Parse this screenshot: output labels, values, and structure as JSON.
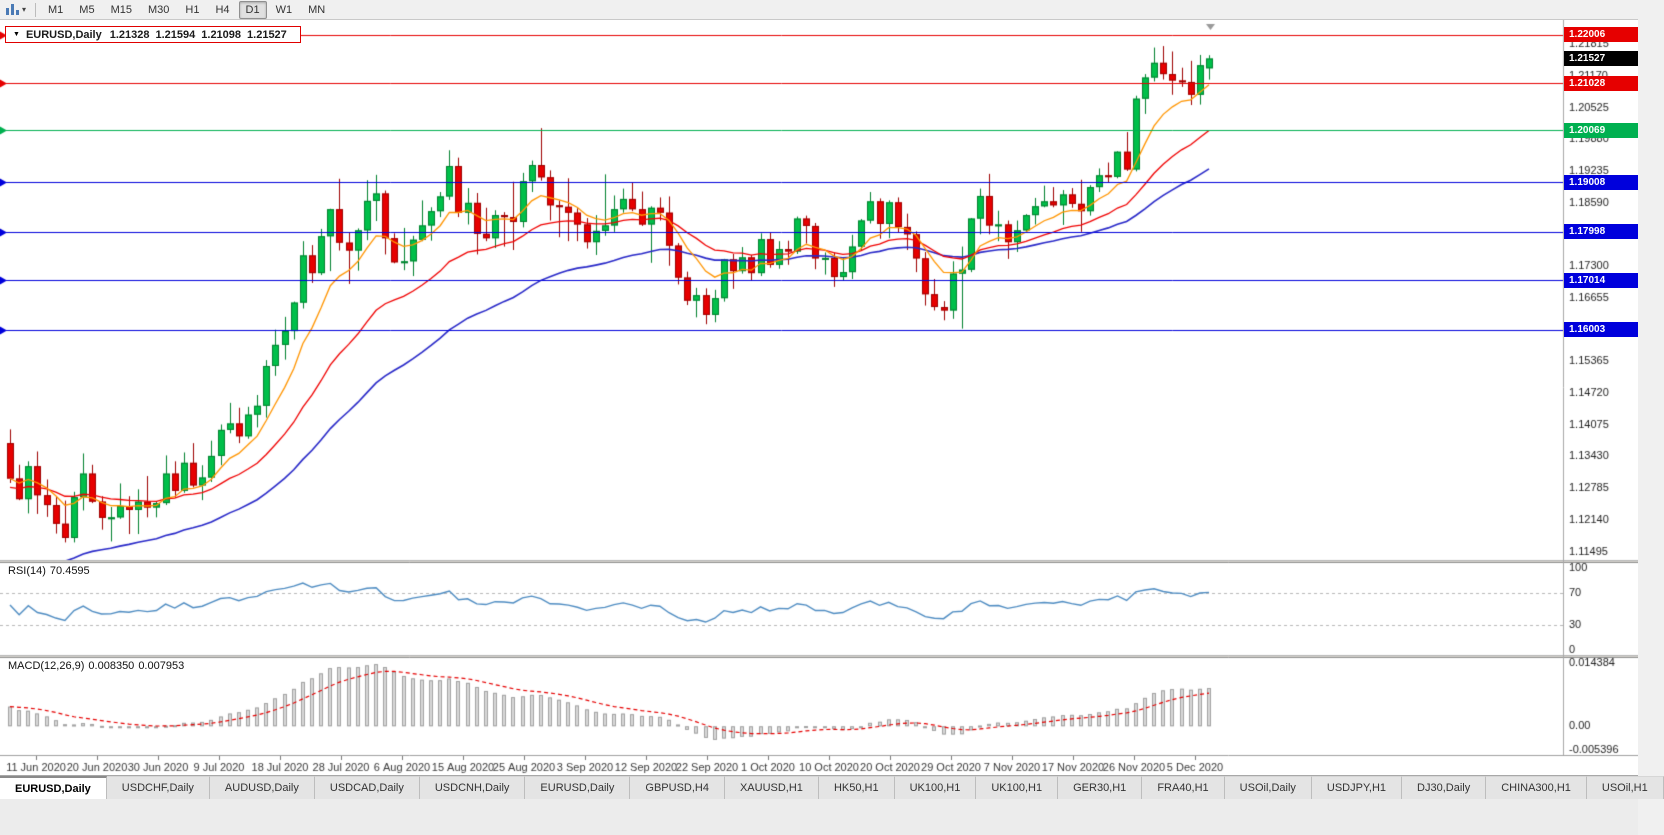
{
  "toolbar": {
    "dropdown_caret": "▾",
    "timeframes": [
      "M1",
      "M5",
      "M15",
      "M30",
      "H1",
      "H4",
      "D1",
      "W1",
      "MN"
    ],
    "active_timeframe": "D1"
  },
  "chart": {
    "title": {
      "collapse_icon": "▼",
      "symbol": "EURUSD,Daily",
      "open": "1.21328",
      "high": "1.21594",
      "low": "1.21098",
      "close": "1.21527"
    },
    "price_axis_ticks": [
      "1.21815",
      "1.21170",
      "1.20525",
      "1.19880",
      "1.19235",
      "1.18590",
      "1.17300",
      "1.16655",
      "1.15365",
      "1.14720",
      "1.14075",
      "1.13430",
      "1.12785",
      "1.12140",
      "1.11495"
    ],
    "badges": [
      {
        "value": "1.22006",
        "color": "#e60000",
        "type": "resistance-line"
      },
      {
        "value": "1.21527",
        "color": "#000000",
        "type": "current-price"
      },
      {
        "value": "1.21028",
        "color": "#e60000",
        "type": "resistance-line"
      },
      {
        "value": "1.20069",
        "color": "#00b050",
        "type": "support-line"
      },
      {
        "value": "1.19008",
        "color": "#0000dc",
        "type": "support-line"
      },
      {
        "value": "1.17998",
        "color": "#0000dc",
        "type": "support-line"
      },
      {
        "value": "1.17014",
        "color": "#0000dc",
        "type": "support-line"
      },
      {
        "value": "1.16003",
        "color": "#0000dc",
        "type": "support-line"
      }
    ]
  },
  "rsi_panel": {
    "label": "RSI(14)",
    "value": "70.4595",
    "axis_ticks": [
      "100",
      "70",
      "30",
      "0"
    ],
    "levels": [
      70,
      30
    ],
    "line_color": "#4e8cc2"
  },
  "macd_panel": {
    "label": "MACD(12,26,9)",
    "main_value": "0.008350",
    "signal_value": "0.007953",
    "axis_ticks": [
      "0.014384",
      "0.00",
      "-0.005396"
    ],
    "range": [
      -0.005396,
      0.014384
    ],
    "histogram_color": "#d8d8d8",
    "signal_color": "#e60000"
  },
  "date_axis": [
    "11 Jun 2020",
    "20 Jun 2020",
    "30 Jun 2020",
    "9 Jul 2020",
    "18 Jul 2020",
    "28 Jul 2020",
    "6 Aug 2020",
    "15 Aug 2020",
    "25 Aug 2020",
    "3 Sep 2020",
    "12 Sep 2020",
    "22 Sep 2020",
    "1 Oct 2020",
    "10 Oct 2020",
    "20 Oct 2020",
    "29 Oct 2020",
    "7 Nov 2020",
    "17 Nov 2020",
    "26 Nov 2020",
    "5 Dec 2020"
  ],
  "tabs": {
    "active_index": 0,
    "items": [
      "EURUSD,Daily",
      "USDCHF,Daily",
      "AUDUSD,Daily",
      "USDCAD,Daily",
      "USDCNH,Daily",
      "EURUSD,Daily",
      "GBPUSD,H4",
      "XAUUSD,H1",
      "HK50,H1",
      "UK100,H1",
      "UK100,H1",
      "GER30,H1",
      "FRA40,H1",
      "USOil,Daily",
      "USDJPY,H1",
      "DJ30,Daily",
      "CHINA300,H1",
      "USOil,H1"
    ]
  },
  "chart_data": {
    "type": "candlestick",
    "symbol": "EURUSD",
    "timeframe": "Daily",
    "price_range_top": 1.22311,
    "price_range_bottom": 1.11322,
    "up_color": "#00bf4a",
    "down_color": "#e60000",
    "hlines": [
      {
        "price": 1.22006,
        "color": "#e60000"
      },
      {
        "price": 1.21028,
        "color": "#e60000"
      },
      {
        "price": 1.20069,
        "color": "#00b050"
      },
      {
        "price": 1.19008,
        "color": "#0000dc"
      },
      {
        "price": 1.17998,
        "color": "#0000dc"
      },
      {
        "price": 1.17014,
        "color": "#0000dc"
      },
      {
        "price": 1.16003,
        "color": "#0000dc"
      }
    ],
    "moving_averages": [
      {
        "period": 8,
        "color": "#ff9500"
      },
      {
        "period": 21,
        "color": "#f00000"
      },
      {
        "period": 40,
        "color": "#2828c8"
      }
    ],
    "candles": [
      [
        1.137,
        1.1398,
        1.1289,
        1.1298
      ],
      [
        1.1298,
        1.1326,
        1.1254,
        1.1256
      ],
      [
        1.1256,
        1.1333,
        1.1227,
        1.1323
      ],
      [
        1.1323,
        1.1353,
        1.1226,
        1.1264
      ],
      [
        1.1264,
        1.1296,
        1.122,
        1.1244
      ],
      [
        1.1244,
        1.1262,
        1.1186,
        1.1206
      ],
      [
        1.1206,
        1.1253,
        1.1168,
        1.1177
      ],
      [
        1.1177,
        1.1271,
        1.1168,
        1.126
      ],
      [
        1.126,
        1.1349,
        1.1233,
        1.1308
      ],
      [
        1.1308,
        1.1326,
        1.1248,
        1.1251
      ],
      [
        1.1251,
        1.1262,
        1.1194,
        1.1218
      ],
      [
        1.1218,
        1.124,
        1.117,
        1.1219
      ],
      [
        1.1219,
        1.1288,
        1.1216,
        1.1242
      ],
      [
        1.1242,
        1.1262,
        1.1185,
        1.1234
      ],
      [
        1.1234,
        1.1276,
        1.1185,
        1.1251
      ],
      [
        1.1251,
        1.1303,
        1.1219,
        1.1239
      ],
      [
        1.1239,
        1.1251,
        1.1219,
        1.1248
      ],
      [
        1.1248,
        1.1345,
        1.1244,
        1.1308
      ],
      [
        1.1308,
        1.1333,
        1.1259,
        1.1273
      ],
      [
        1.1273,
        1.1351,
        1.1269,
        1.133
      ],
      [
        1.133,
        1.137,
        1.128,
        1.1284
      ],
      [
        1.1284,
        1.1325,
        1.1254,
        1.13
      ],
      [
        1.13,
        1.1375,
        1.1291,
        1.1344
      ],
      [
        1.1344,
        1.1408,
        1.1325,
        1.1397
      ],
      [
        1.1397,
        1.1452,
        1.139,
        1.141
      ],
      [
        1.141,
        1.1442,
        1.137,
        1.1384
      ],
      [
        1.1384,
        1.1444,
        1.1379,
        1.1428
      ],
      [
        1.1428,
        1.1468,
        1.1402,
        1.1446
      ],
      [
        1.1446,
        1.1539,
        1.1422,
        1.1527
      ],
      [
        1.1527,
        1.1601,
        1.1507,
        1.157
      ],
      [
        1.157,
        1.1627,
        1.154,
        1.1598
      ],
      [
        1.1598,
        1.1658,
        1.1581,
        1.1656
      ],
      [
        1.1656,
        1.1781,
        1.1644,
        1.1752
      ],
      [
        1.1752,
        1.1773,
        1.1696,
        1.1716
      ],
      [
        1.1716,
        1.1806,
        1.1712,
        1.1791
      ],
      [
        1.1791,
        1.1847,
        1.172,
        1.1846
      ],
      [
        1.1846,
        1.1908,
        1.1762,
        1.1778
      ],
      [
        1.1778,
        1.1798,
        1.1694,
        1.1762
      ],
      [
        1.1762,
        1.1807,
        1.1721,
        1.1803
      ],
      [
        1.1803,
        1.1905,
        1.1783,
        1.1863
      ],
      [
        1.1863,
        1.1916,
        1.1822,
        1.1878
      ],
      [
        1.1878,
        1.1884,
        1.1754,
        1.1787
      ],
      [
        1.1787,
        1.1797,
        1.1736,
        1.1738
      ],
      [
        1.1738,
        1.1808,
        1.1722,
        1.174
      ],
      [
        1.174,
        1.1792,
        1.171,
        1.1784
      ],
      [
        1.1784,
        1.1864,
        1.1781,
        1.1813
      ],
      [
        1.1813,
        1.185,
        1.1782,
        1.1842
      ],
      [
        1.1842,
        1.1881,
        1.183,
        1.1872
      ],
      [
        1.1872,
        1.1966,
        1.1865,
        1.1934
      ],
      [
        1.1934,
        1.1951,
        1.183,
        1.1839
      ],
      [
        1.1839,
        1.1889,
        1.1815,
        1.1859
      ],
      [
        1.1859,
        1.1879,
        1.1754,
        1.1796
      ],
      [
        1.1796,
        1.1849,
        1.1781,
        1.1787
      ],
      [
        1.1787,
        1.1844,
        1.1767,
        1.1834
      ],
      [
        1.1834,
        1.184,
        1.177,
        1.183
      ],
      [
        1.183,
        1.1902,
        1.1763,
        1.182
      ],
      [
        1.182,
        1.192,
        1.1809,
        1.1903
      ],
      [
        1.1903,
        1.1945,
        1.1881,
        1.1936
      ],
      [
        1.1936,
        1.2011,
        1.1904,
        1.1911
      ],
      [
        1.1911,
        1.1925,
        1.1823,
        1.1854
      ],
      [
        1.1854,
        1.1864,
        1.1789,
        1.1851
      ],
      [
        1.1851,
        1.1909,
        1.1781,
        1.1839
      ],
      [
        1.1839,
        1.1848,
        1.1781,
        1.1815
      ],
      [
        1.1815,
        1.1828,
        1.1766,
        1.1779
      ],
      [
        1.1779,
        1.1834,
        1.1753,
        1.1802
      ],
      [
        1.1802,
        1.1917,
        1.1792,
        1.1813
      ],
      [
        1.1813,
        1.1874,
        1.18,
        1.1846
      ],
      [
        1.1846,
        1.1888,
        1.1839,
        1.1867
      ],
      [
        1.1867,
        1.19,
        1.1842,
        1.1846
      ],
      [
        1.1846,
        1.1882,
        1.1812,
        1.1815
      ],
      [
        1.1815,
        1.1852,
        1.1737,
        1.1849
      ],
      [
        1.1849,
        1.187,
        1.1823,
        1.1839
      ],
      [
        1.1839,
        1.1872,
        1.1731,
        1.1772
      ],
      [
        1.1772,
        1.1777,
        1.1693,
        1.1707
      ],
      [
        1.1707,
        1.1719,
        1.1651,
        1.166
      ],
      [
        1.166,
        1.1686,
        1.1626,
        1.1671
      ],
      [
        1.1671,
        1.1685,
        1.1612,
        1.1631
      ],
      [
        1.1631,
        1.1682,
        1.1616,
        1.1665
      ],
      [
        1.1665,
        1.1745,
        1.1658,
        1.1744
      ],
      [
        1.1744,
        1.1755,
        1.1684,
        1.172
      ],
      [
        1.172,
        1.1769,
        1.1715,
        1.1748
      ],
      [
        1.1748,
        1.1753,
        1.1701,
        1.1716
      ],
      [
        1.1716,
        1.1797,
        1.171,
        1.1785
      ],
      [
        1.1785,
        1.1799,
        1.1727,
        1.1733
      ],
      [
        1.1733,
        1.1781,
        1.1725,
        1.1765
      ],
      [
        1.1765,
        1.1782,
        1.1733,
        1.176
      ],
      [
        1.176,
        1.1831,
        1.1755,
        1.1827
      ],
      [
        1.1827,
        1.1833,
        1.1776,
        1.1812
      ],
      [
        1.1812,
        1.1818,
        1.1724,
        1.1746
      ],
      [
        1.1746,
        1.1758,
        1.1713,
        1.1747
      ],
      [
        1.1747,
        1.1758,
        1.1688,
        1.1708
      ],
      [
        1.1708,
        1.1747,
        1.1701,
        1.1718
      ],
      [
        1.1718,
        1.1794,
        1.1704,
        1.177
      ],
      [
        1.177,
        1.1826,
        1.1761,
        1.1823
      ],
      [
        1.1823,
        1.1881,
        1.1817,
        1.1862
      ],
      [
        1.1862,
        1.1868,
        1.1786,
        1.1816
      ],
      [
        1.1816,
        1.1864,
        1.1787,
        1.186
      ],
      [
        1.186,
        1.187,
        1.1799,
        1.181
      ],
      [
        1.181,
        1.1837,
        1.1763,
        1.1795
      ],
      [
        1.1795,
        1.1801,
        1.1718,
        1.1746
      ],
      [
        1.1746,
        1.1759,
        1.165,
        1.1673
      ],
      [
        1.1673,
        1.1704,
        1.164,
        1.1647
      ],
      [
        1.1647,
        1.1659,
        1.162,
        1.164
      ],
      [
        1.164,
        1.174,
        1.1623,
        1.1715
      ],
      [
        1.1715,
        1.177,
        1.1603,
        1.1723
      ],
      [
        1.1723,
        1.1828,
        1.1718,
        1.1827
      ],
      [
        1.1827,
        1.1888,
        1.1795,
        1.1873
      ],
      [
        1.1873,
        1.1918,
        1.1795,
        1.1813
      ],
      [
        1.1813,
        1.1843,
        1.1781,
        1.1815
      ],
      [
        1.1815,
        1.1823,
        1.1745,
        1.1779
      ],
      [
        1.1779,
        1.1823,
        1.1759,
        1.1803
      ],
      [
        1.1803,
        1.1836,
        1.1799,
        1.1834
      ],
      [
        1.1834,
        1.1869,
        1.1815,
        1.1852
      ],
      [
        1.1852,
        1.1894,
        1.185,
        1.1862
      ],
      [
        1.1862,
        1.1891,
        1.185,
        1.1854
      ],
      [
        1.1854,
        1.1885,
        1.1814,
        1.1876
      ],
      [
        1.1876,
        1.1889,
        1.1849,
        1.1857
      ],
      [
        1.1857,
        1.1906,
        1.18,
        1.1842
      ],
      [
        1.1842,
        1.1895,
        1.1833,
        1.1891
      ],
      [
        1.1891,
        1.1929,
        1.1881,
        1.1915
      ],
      [
        1.1915,
        1.1941,
        1.19,
        1.1912
      ],
      [
        1.1912,
        1.1964,
        1.1909,
        1.1963
      ],
      [
        1.1963,
        1.2003,
        1.1924,
        1.1927
      ],
      [
        1.1927,
        1.2077,
        1.1923,
        1.2071
      ],
      [
        1.2071,
        1.2121,
        1.204,
        1.2114
      ],
      [
        1.2114,
        1.2175,
        1.2106,
        1.2144
      ],
      [
        1.2144,
        1.2178,
        1.211,
        1.2121
      ],
      [
        1.2121,
        1.2167,
        1.2079,
        1.2108
      ],
      [
        1.2108,
        1.2134,
        1.2095,
        1.2105
      ],
      [
        1.2105,
        1.2148,
        1.2058,
        1.2079
      ],
      [
        1.2079,
        1.216,
        1.2059,
        1.2139
      ],
      [
        1.21328,
        1.21594,
        1.21098,
        1.21527
      ]
    ]
  }
}
